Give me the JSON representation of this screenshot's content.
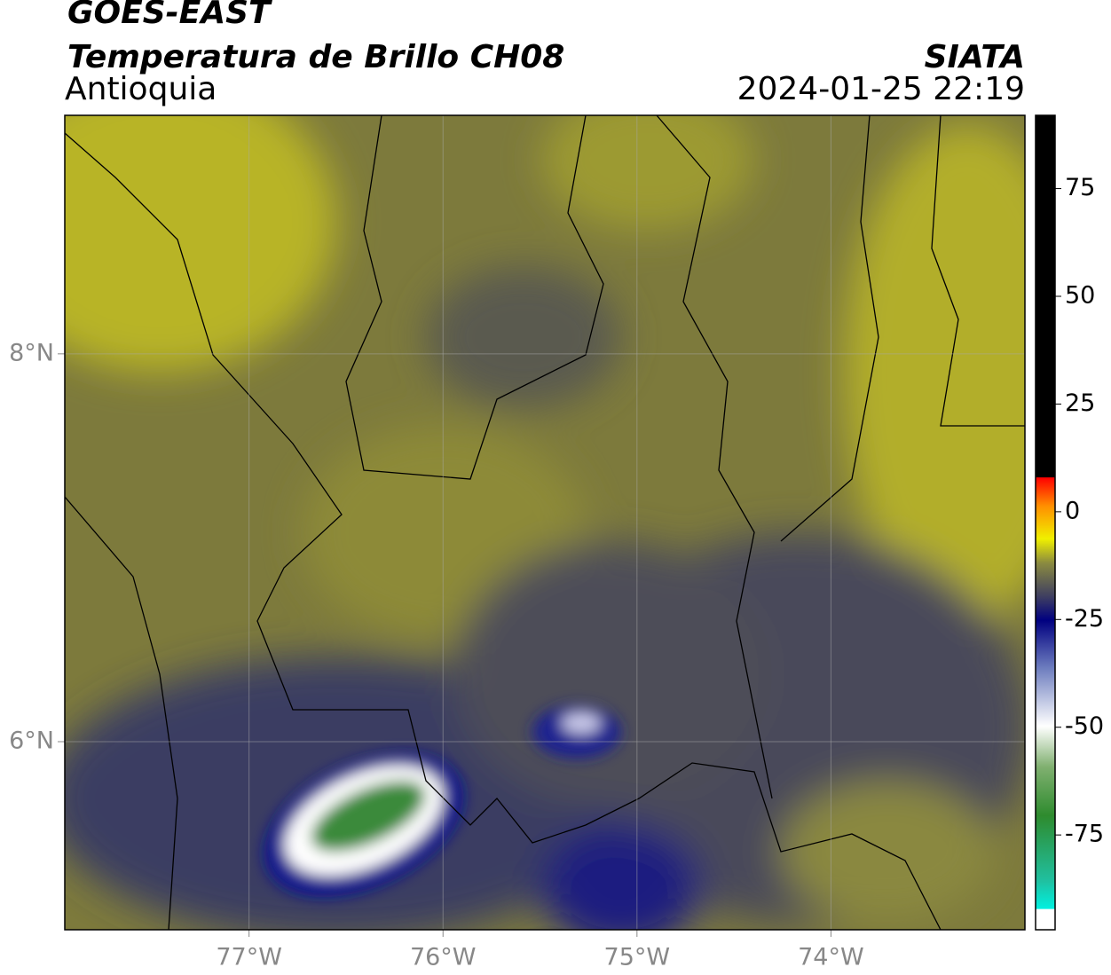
{
  "header": {
    "satellite": "GOES-EAST",
    "title": "Temperatura de Brillo CH08",
    "region": "Antioquia",
    "source": "SIATA",
    "datetime": "2024-01-25 22:19"
  },
  "map": {
    "lonlim": [
      -77.95,
      -73.0
    ],
    "latlim": [
      5.03,
      9.23
    ],
    "lat_ticks": [
      {
        "value": 8,
        "label": "8°N"
      },
      {
        "value": 6,
        "label": "6°N"
      }
    ],
    "lon_ticks": [
      {
        "value": -77,
        "label": "77°W"
      },
      {
        "value": -76,
        "label": "76°W"
      },
      {
        "value": -75,
        "label": "75°W"
      },
      {
        "value": -74,
        "label": "74°W"
      }
    ]
  },
  "colorbar": {
    "lim": [
      -97,
      92
    ],
    "ticks": [
      75,
      50,
      25,
      0,
      -25,
      -50,
      -75
    ]
  }
}
